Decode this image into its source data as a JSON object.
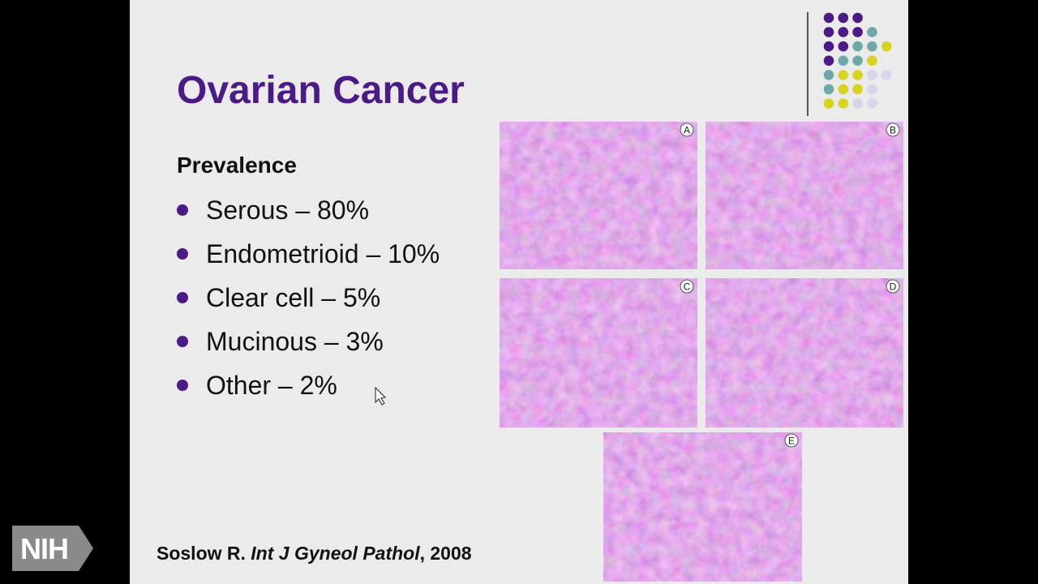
{
  "slide": {
    "title": "Ovarian Cancer",
    "heading": "Prevalence",
    "bullets": [
      "Serous – 80%",
      "Endometrioid – 10%",
      "Clear cell – 5%",
      "Mucinous – 3%",
      "Other – 2%"
    ],
    "citation": {
      "author": "Soslow R.",
      "journal": "Int J Gyneol Pathol",
      "year": ", 2008"
    }
  },
  "figure": {
    "panels": [
      "A",
      "B",
      "C",
      "D",
      "E"
    ]
  },
  "logo": "NIH"
}
